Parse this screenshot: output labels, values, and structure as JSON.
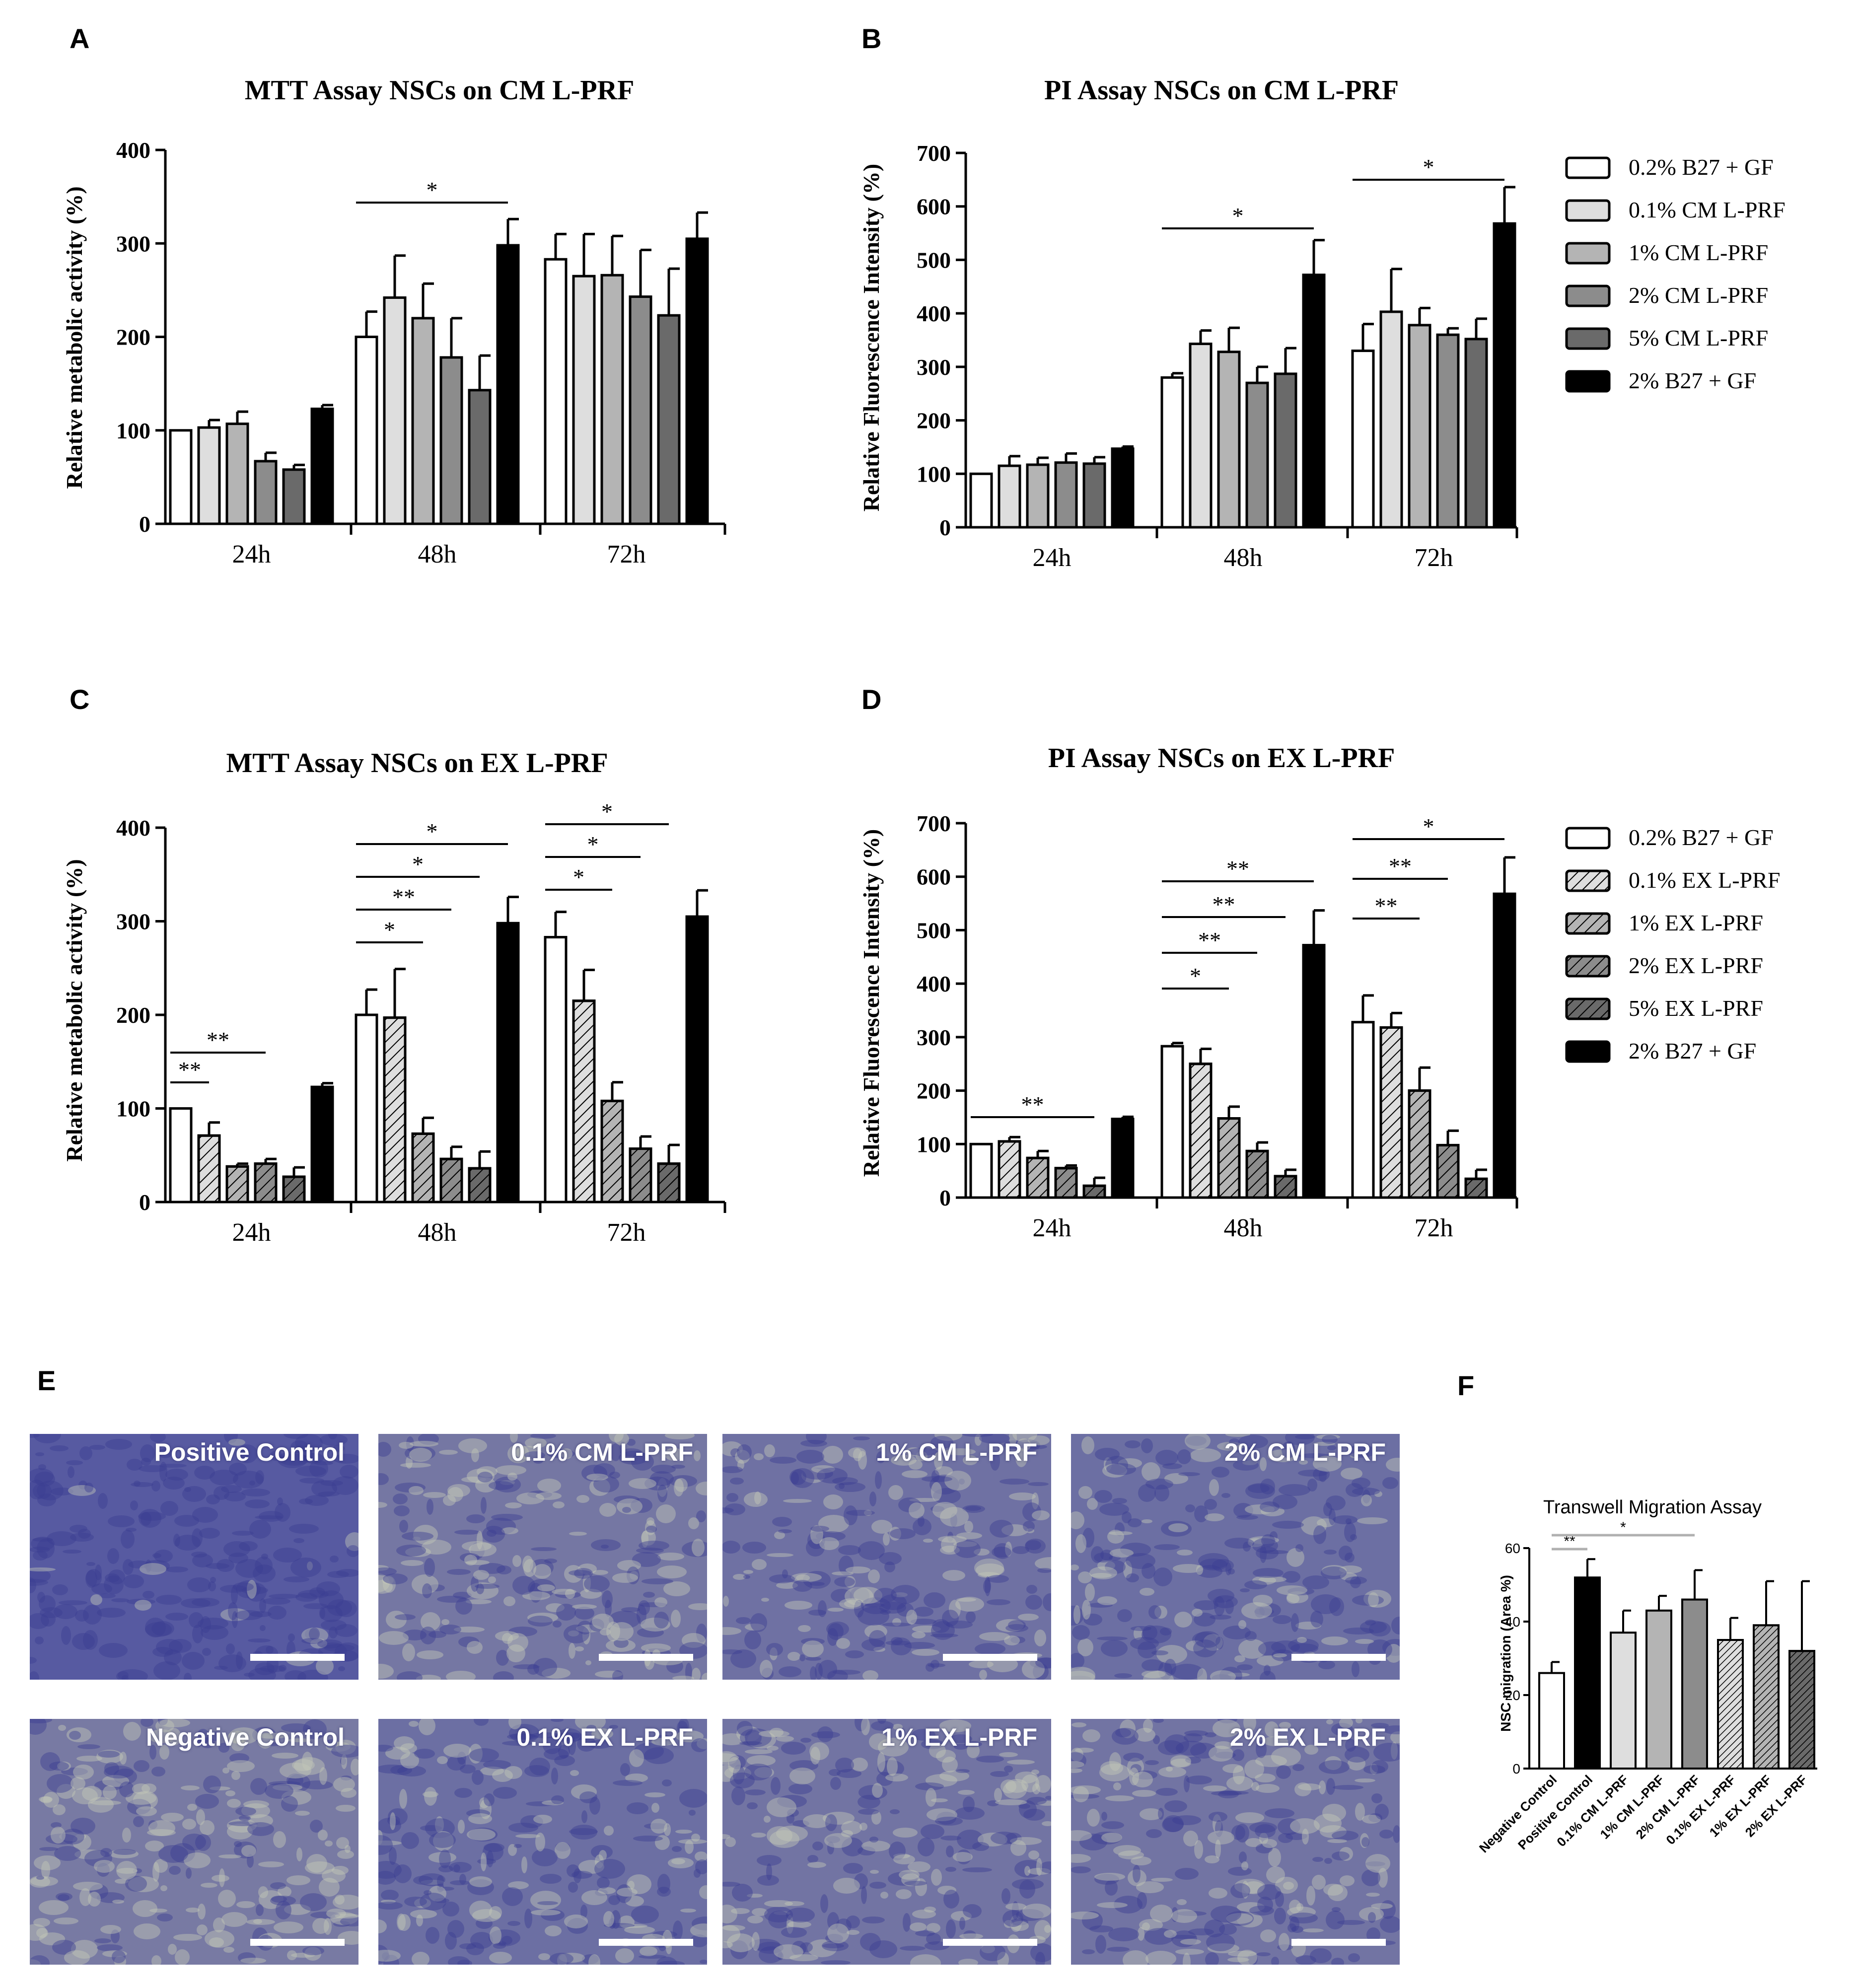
{
  "panel_labels": [
    "A",
    "B",
    "C",
    "D",
    "E",
    "F"
  ],
  "colors": {
    "white": "#ffffff",
    "g1": "#dedede",
    "g2": "#b4b4b4",
    "g3": "#8c8c8c",
    "g4": "#6a6a6a",
    "black": "#000000",
    "micro_a": "#4a4ca0",
    "micro_b": "#b4b8a8"
  },
  "legends": [
    {
      "key": "legend_cm",
      "items": [
        {
          "label": "0.2% B27 + GF",
          "fill": "#ffffff",
          "hatch": false
        },
        {
          "label": "0.1% CM L-PRF",
          "fill": "#dedede",
          "hatch": false
        },
        {
          "label": "1% CM L-PRF",
          "fill": "#b4b4b4",
          "hatch": false
        },
        {
          "label": "2% CM L-PRF",
          "fill": "#8c8c8c",
          "hatch": false
        },
        {
          "label": "5% CM L-PRF",
          "fill": "#6a6a6a",
          "hatch": false
        },
        {
          "label": "2% B27 + GF",
          "fill": "#000000",
          "hatch": false
        }
      ]
    },
    {
      "key": "legend_ex",
      "items": [
        {
          "label": "0.2% B27 + GF",
          "fill": "#ffffff",
          "hatch": false
        },
        {
          "label": "0.1% EX L-PRF",
          "fill": "#dedede",
          "hatch": true
        },
        {
          "label": "1% EX L-PRF",
          "fill": "#b4b4b4",
          "hatch": true
        },
        {
          "label": "2% EX L-PRF",
          "fill": "#8c8c8c",
          "hatch": true
        },
        {
          "label": "5% EX L-PRF",
          "fill": "#6a6a6a",
          "hatch": true
        },
        {
          "label": "2% B27 + GF",
          "fill": "#000000",
          "hatch": false
        }
      ]
    }
  ],
  "chart_data": [
    {
      "id": "A",
      "type": "bar",
      "title": "MTT Assay NSCs on CM L-PRF",
      "ylabel": "Relative metabolic activity (%)",
      "xlabel": "",
      "categories": [
        "24h",
        "48h",
        "72h"
      ],
      "ylim": [
        0,
        400
      ],
      "yticks": [
        "0",
        "100",
        "200",
        "300",
        "400"
      ],
      "series": [
        {
          "name": "0.2% B27 + GF",
          "values": [
            100,
            200,
            283
          ],
          "errors": [
            0,
            27,
            27
          ]
        },
        {
          "name": "0.1% CM L-PRF",
          "values": [
            103,
            242,
            265
          ],
          "errors": [
            8,
            45,
            45
          ]
        },
        {
          "name": "1% CM L-PRF",
          "values": [
            107,
            220,
            266
          ],
          "errors": [
            13,
            37,
            42
          ]
        },
        {
          "name": "2% CM L-PRF",
          "values": [
            67,
            178,
            243
          ],
          "errors": [
            9,
            42,
            50
          ]
        },
        {
          "name": "5% CM L-PRF",
          "values": [
            58,
            143,
            223
          ],
          "errors": [
            5,
            37,
            50
          ]
        },
        {
          "name": "2% B27 + GF",
          "values": [
            123,
            298,
            305
          ],
          "errors": [
            4,
            28,
            28
          ]
        }
      ],
      "significance": [
        {
          "group": 1,
          "from": 0,
          "to": 5,
          "label": "*"
        }
      ]
    },
    {
      "id": "B",
      "type": "bar",
      "title": "PI Assay NSCs on CM  L-PRF",
      "ylabel": "Relative Fluorescence Intensity (%)",
      "xlabel": "",
      "categories": [
        "24h",
        "48h",
        "72h"
      ],
      "ylim": [
        0,
        700
      ],
      "yticks": [
        "0",
        "100",
        "200",
        "300",
        "400",
        "500",
        "600",
        "700"
      ],
      "series": [
        {
          "name": "0.2% B27 + GF",
          "values": [
            100,
            280,
            330
          ],
          "errors": [
            0,
            8,
            50
          ]
        },
        {
          "name": "0.1% CM L-PRF",
          "values": [
            115,
            343,
            403
          ],
          "errors": [
            18,
            25,
            80
          ]
        },
        {
          "name": "1% CM L-PRF",
          "values": [
            117,
            328,
            378
          ],
          "errors": [
            13,
            45,
            32
          ]
        },
        {
          "name": "2% CM L-PRF",
          "values": [
            121,
            270,
            360
          ],
          "errors": [
            17,
            30,
            12
          ]
        },
        {
          "name": "5% CM L-PRF",
          "values": [
            119,
            287,
            352
          ],
          "errors": [
            12,
            48,
            38
          ]
        },
        {
          "name": "2% B27 + GF",
          "values": [
            147,
            472,
            568
          ],
          "errors": [
            4,
            65,
            68
          ]
        }
      ],
      "significance": [
        {
          "group": 1,
          "from": 0,
          "to": 5,
          "label": "*"
        },
        {
          "group": 2,
          "from": 0,
          "to": 5,
          "label": "*"
        }
      ]
    },
    {
      "id": "C",
      "type": "bar",
      "title": "MTT Assay NSCs on EX L-PRF",
      "ylabel": "Relative metabolic activity (%)",
      "xlabel": "",
      "categories": [
        "24h",
        "48h",
        "72h"
      ],
      "ylim": [
        0,
        400
      ],
      "yticks": [
        "0",
        "100",
        "200",
        "300",
        "400"
      ],
      "series": [
        {
          "name": "0.2% B27 + GF",
          "values": [
            100,
            200,
            283
          ],
          "errors": [
            0,
            27,
            27
          ]
        },
        {
          "name": "0.1% EX L-PRF",
          "values": [
            71,
            197,
            215
          ],
          "errors": [
            14,
            52,
            33
          ]
        },
        {
          "name": "1% EX L-PRF",
          "values": [
            38,
            73,
            108
          ],
          "errors": [
            3,
            17,
            20
          ]
        },
        {
          "name": "2% EX L-PRF",
          "values": [
            41,
            46,
            57
          ],
          "errors": [
            5,
            13,
            13
          ]
        },
        {
          "name": "5% EX L-PRF",
          "values": [
            27,
            36,
            41
          ],
          "errors": [
            10,
            18,
            20
          ]
        },
        {
          "name": "2% B27 + GF",
          "values": [
            123,
            298,
            305
          ],
          "errors": [
            4,
            28,
            28
          ]
        }
      ],
      "significance": [
        {
          "group": 0,
          "from": 0,
          "to": 1,
          "label": "**"
        },
        {
          "group": 0,
          "from": 0,
          "to": 3,
          "label": "**"
        },
        {
          "group": 1,
          "from": 0,
          "to": 2,
          "label": "*"
        },
        {
          "group": 1,
          "from": 0,
          "to": 3,
          "label": "**"
        },
        {
          "group": 1,
          "from": 0,
          "to": 4,
          "label": "*"
        },
        {
          "group": 1,
          "from": 0,
          "to": 5,
          "label": "*"
        },
        {
          "group": 2,
          "from": 0,
          "to": 2,
          "label": "*"
        },
        {
          "group": 2,
          "from": 0,
          "to": 3,
          "label": "*"
        },
        {
          "group": 2,
          "from": 0,
          "to": 4,
          "label": "*"
        }
      ]
    },
    {
      "id": "D",
      "type": "bar",
      "title": "PI Assay NSCs on EX L-PRF",
      "ylabel": "Relative Fluorescence Intensity (%)",
      "xlabel": "",
      "categories": [
        "24h",
        "48h",
        "72h"
      ],
      "ylim": [
        0,
        700
      ],
      "yticks": [
        "0",
        "100",
        "200",
        "300",
        "400",
        "500",
        "600",
        "700"
      ],
      "series": [
        {
          "name": "0.2% B27 + GF",
          "values": [
            100,
            283,
            328
          ],
          "errors": [
            0,
            6,
            50
          ]
        },
        {
          "name": "0.1% EX L-PRF",
          "values": [
            105,
            250,
            318
          ],
          "errors": [
            8,
            28,
            27
          ]
        },
        {
          "name": "1% EX L-PRF",
          "values": [
            74,
            148,
            200
          ],
          "errors": [
            13,
            22,
            43
          ]
        },
        {
          "name": "2% EX L-PRF",
          "values": [
            55,
            87,
            98
          ],
          "errors": [
            5,
            16,
            27
          ]
        },
        {
          "name": "5% EX L-PRF",
          "values": [
            22,
            40,
            35
          ],
          "errors": [
            15,
            12,
            17
          ]
        },
        {
          "name": "2% B27 + GF",
          "values": [
            147,
            472,
            568
          ],
          "errors": [
            4,
            65,
            68
          ]
        }
      ],
      "significance": [
        {
          "group": 0,
          "from": 0,
          "to": 4,
          "label": "**"
        },
        {
          "group": 1,
          "from": 0,
          "to": 2,
          "label": "*"
        },
        {
          "group": 1,
          "from": 0,
          "to": 3,
          "label": "**"
        },
        {
          "group": 1,
          "from": 0,
          "to": 4,
          "label": "**"
        },
        {
          "group": 1,
          "from": 0,
          "to": 5,
          "label": "**"
        },
        {
          "group": 2,
          "from": 0,
          "to": 2,
          "label": "**"
        },
        {
          "group": 2,
          "from": 0,
          "to": 3,
          "label": "**"
        },
        {
          "group": 2,
          "from": 0,
          "to": 5,
          "label": "*"
        }
      ]
    },
    {
      "id": "F",
      "type": "bar",
      "title": "Transwell Migration Assay",
      "ylabel": "NSC migration (Area %)",
      "xlabel": "",
      "categories": [
        "Negative Control",
        "Positive Control",
        "0.1% CM L-PRF",
        "1% CM L-PRF",
        "2% CM L-PRF",
        "0.1% EX L-PRF",
        "1% EX L-PRF",
        "2% EX L-PRF"
      ],
      "ylim": [
        0,
        60
      ],
      "yticks": [
        "0",
        "20",
        "40",
        "60"
      ],
      "values": [
        26,
        52,
        37,
        43,
        46,
        35,
        39,
        32
      ],
      "errors": [
        3,
        5,
        6,
        4,
        8,
        6,
        12,
        19
      ],
      "fills": [
        "#ffffff",
        "#000000",
        "#dedede",
        "#b4b4b4",
        "#8c8c8c",
        "#dedede",
        "#b4b4b4",
        "#6a6a6a"
      ],
      "hatched": [
        false,
        false,
        false,
        false,
        false,
        true,
        true,
        true
      ],
      "significance": [
        {
          "from": 0,
          "to": 1,
          "label": "**"
        },
        {
          "from": 0,
          "to": 4,
          "label": "*"
        }
      ]
    }
  ],
  "micrographs": [
    {
      "label": "Positive Control",
      "density": 0.95
    },
    {
      "label": "0.1% CM L-PRF",
      "density": 0.45
    },
    {
      "label": "1% CM L-PRF",
      "density": 0.55
    },
    {
      "label": "2% CM L-PRF",
      "density": 0.6
    },
    {
      "label": "Negative Control",
      "density": 0.4
    },
    {
      "label": "0.1% EX L-PRF",
      "density": 0.6
    },
    {
      "label": "1% EX L-PRF",
      "density": 0.5
    },
    {
      "label": "2% EX L-PRF",
      "density": 0.5
    }
  ]
}
